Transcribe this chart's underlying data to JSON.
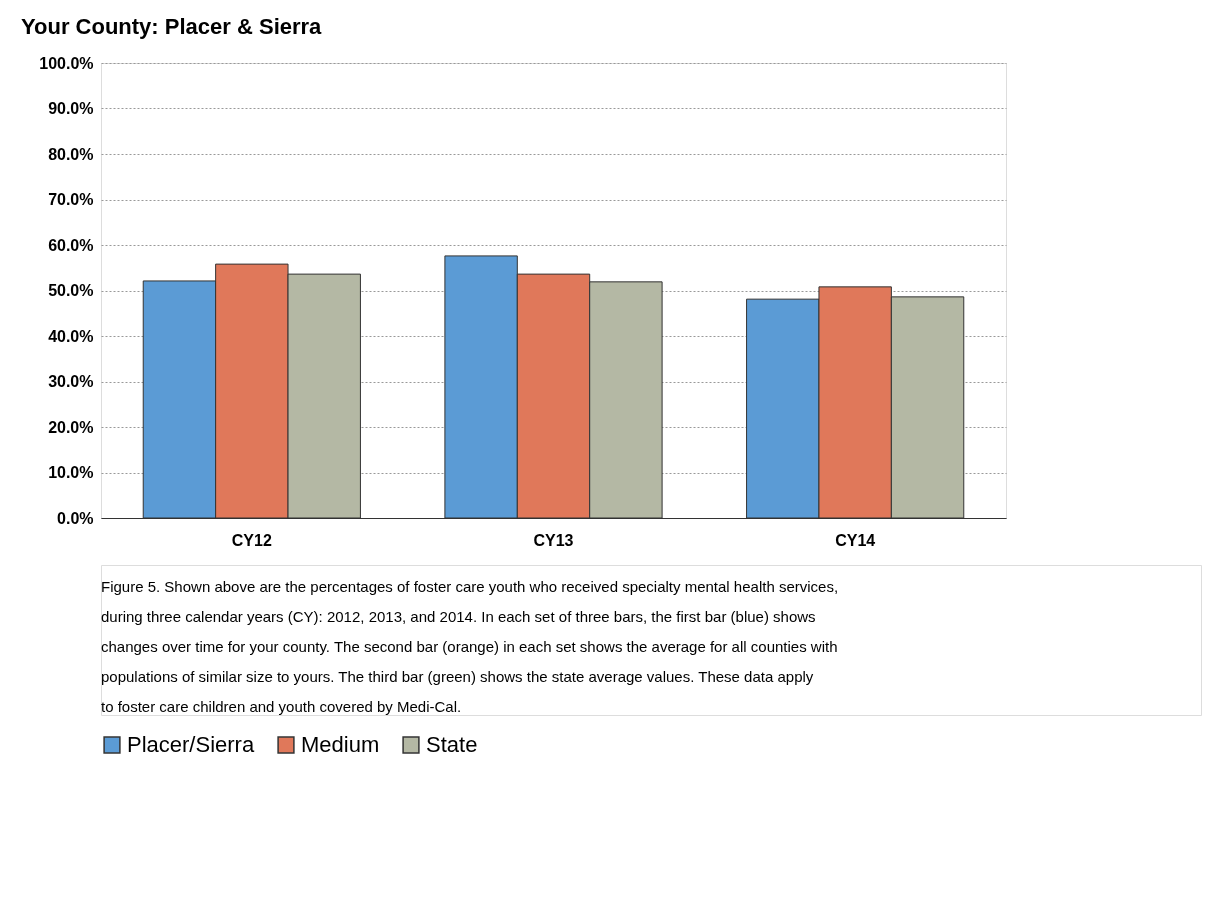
{
  "chart_data": {
    "type": "bar",
    "title": "Your County:  Placer & Sierra",
    "categories": [
      "CY12",
      "CY13",
      "CY14"
    ],
    "series": [
      {
        "name": "Placer/Sierra",
        "color": "#5b9bd5",
        "values": [
          52.1,
          57.6,
          48.1
        ]
      },
      {
        "name": "Medium",
        "color": "#e0785a",
        "values": [
          55.8,
          53.6,
          50.8
        ]
      },
      {
        "name": "State",
        "color": "#b4b8a4",
        "values": [
          53.6,
          51.9,
          48.6
        ]
      }
    ],
    "ylim": [
      0,
      100
    ],
    "yticks": [
      {
        "value": 0,
        "label": "0.0%"
      },
      {
        "value": 10,
        "label": "10.0%"
      },
      {
        "value": 20,
        "label": "20.0%"
      },
      {
        "value": 30,
        "label": "30.0%"
      },
      {
        "value": 40,
        "label": "40.0%"
      },
      {
        "value": 50,
        "label": "50.0%"
      },
      {
        "value": 60,
        "label": "60.0%"
      },
      {
        "value": 70,
        "label": "70.0%"
      },
      {
        "value": 80,
        "label": "80.0%"
      },
      {
        "value": 90,
        "label": "90.0%"
      },
      {
        "value": 100,
        "label": "100.0%"
      }
    ],
    "grid": "y",
    "legend": "bottom",
    "annotations": [
      "Figure 5.  Shown above are the percentages of foster care youth who received specialty mental health services, during three calendar years (CY):  2012, 2013, and 2014.  In each set of three bars, the first bar (blue) shows changes over time for your county.  The second bar (orange) in each set shows the average for all counties with populations of similar size to yours.  The third bar (green) shows the state average values.  These data apply to foster care children and youth covered by Medi-Cal."
    ]
  }
}
